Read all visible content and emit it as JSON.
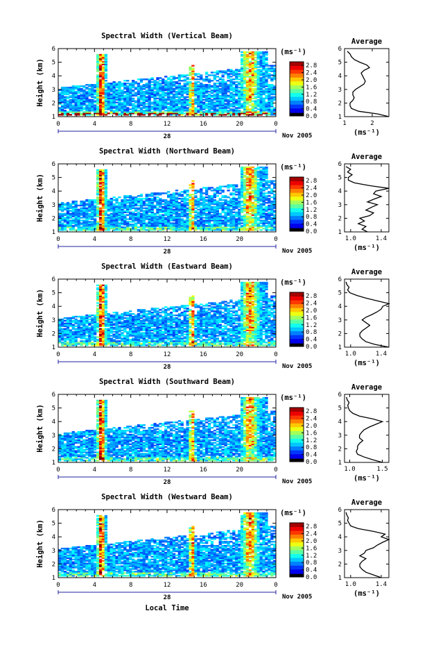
{
  "figure": {
    "xlabel": "Local Time",
    "x_ticks": [
      "0",
      "4",
      "8",
      "12",
      "16",
      "20",
      "0"
    ],
    "day_label": "28",
    "month_label": "Nov 2005",
    "colorbar_unit": "(ms⁻¹)",
    "avg_unit": "(ms⁻¹)"
  },
  "chart_data": [
    {
      "type": "heatmap",
      "title": "Spectral Width (Vertical Beam)",
      "ylabel": "Height (km)",
      "xlabel": "",
      "xlim": [
        0,
        24
      ],
      "ylim": [
        1,
        6
      ],
      "y_ticks": [
        "1",
        "2",
        "3",
        "4",
        "5",
        "6"
      ],
      "colorbar_ticks": [
        "0.0",
        "0.4",
        "0.8",
        "1.2",
        "1.6",
        "2.0",
        "2.4",
        "2.8"
      ],
      "colorbar_range": [
        0,
        3
      ],
      "avg_profile": {
        "title": "Average",
        "x_ticks": [
          "1",
          "2"
        ],
        "xlim": [
          1,
          2.6
        ],
        "height": [
          1.0,
          1.2,
          1.4,
          1.6,
          1.8,
          2.0,
          2.2,
          2.4,
          2.6,
          2.8,
          3.0,
          3.2,
          3.4,
          3.6,
          3.8,
          4.0,
          4.2,
          4.4,
          4.6,
          4.8,
          5.0,
          5.2,
          5.4,
          5.6,
          5.8
        ],
        "value": [
          2.6,
          2.2,
          1.5,
          1.25,
          1.2,
          1.2,
          1.3,
          1.35,
          1.3,
          1.3,
          1.4,
          1.55,
          1.7,
          1.75,
          1.7,
          1.65,
          1.6,
          1.7,
          1.9,
          1.8,
          1.55,
          1.35,
          1.25,
          1.2,
          1.1
        ]
      }
    },
    {
      "type": "heatmap",
      "title": "Spectral Width (Northward Beam)",
      "ylabel": "Height (km)",
      "xlabel": "",
      "xlim": [
        0,
        24
      ],
      "ylim": [
        1,
        6
      ],
      "y_ticks": [
        "1",
        "2",
        "3",
        "4",
        "5",
        "6"
      ],
      "colorbar_ticks": [
        "0.0",
        "0.4",
        "0.8",
        "1.2",
        "1.6",
        "2.0",
        "2.4",
        "2.8"
      ],
      "colorbar_range": [
        0,
        3
      ],
      "avg_profile": {
        "title": "Average",
        "x_ticks": [
          "1.0",
          "1.4"
        ],
        "xlim": [
          0.92,
          1.5
        ],
        "height": [
          1.0,
          1.2,
          1.4,
          1.6,
          1.8,
          2.0,
          2.2,
          2.4,
          2.6,
          2.8,
          3.0,
          3.2,
          3.4,
          3.6,
          3.8,
          4.0,
          4.2,
          4.4,
          4.6,
          4.8,
          5.0,
          5.2,
          5.4,
          5.6,
          5.8
        ],
        "value": [
          1.22,
          1.15,
          1.2,
          1.1,
          1.18,
          1.12,
          1.25,
          1.3,
          1.2,
          1.27,
          1.35,
          1.22,
          1.3,
          1.4,
          1.3,
          1.33,
          1.5,
          1.25,
          1.05,
          0.97,
          0.97,
          1.02,
          0.96,
          1.0,
          0.94
        ]
      }
    },
    {
      "type": "heatmap",
      "title": "Spectral Width (Eastward Beam)",
      "ylabel": "Height (km)",
      "xlabel": "",
      "xlim": [
        0,
        24
      ],
      "ylim": [
        1,
        6
      ],
      "y_ticks": [
        "1",
        "2",
        "3",
        "4",
        "5",
        "6"
      ],
      "colorbar_ticks": [
        "0.0",
        "0.4",
        "0.8",
        "1.2",
        "1.6",
        "2.0",
        "2.4",
        "2.8"
      ],
      "colorbar_range": [
        0,
        3
      ],
      "avg_profile": {
        "title": "Average",
        "x_ticks": [
          "1.0",
          "1.4"
        ],
        "xlim": [
          0.92,
          1.5
        ],
        "height": [
          1.0,
          1.2,
          1.4,
          1.6,
          1.8,
          2.0,
          2.2,
          2.4,
          2.6,
          2.8,
          3.0,
          3.2,
          3.4,
          3.6,
          3.8,
          4.0,
          4.2,
          4.4,
          4.6,
          4.8,
          5.0,
          5.2,
          5.4,
          5.6,
          5.8
        ],
        "value": [
          1.5,
          1.32,
          1.2,
          1.15,
          1.12,
          1.12,
          1.15,
          1.2,
          1.25,
          1.2,
          1.15,
          1.2,
          1.28,
          1.35,
          1.4,
          1.42,
          1.5,
          1.35,
          1.2,
          1.08,
          0.99,
          0.96,
          0.98,
          0.95,
          0.94
        ]
      }
    },
    {
      "type": "heatmap",
      "title": "Spectral Width (Southward Beam)",
      "ylabel": "Height (km)",
      "xlabel": "",
      "xlim": [
        0,
        24
      ],
      "ylim": [
        1,
        6
      ],
      "y_ticks": [
        "1",
        "2",
        "3",
        "4",
        "5",
        "6"
      ],
      "colorbar_ticks": [
        "0.0",
        "0.4",
        "0.8",
        "1.2",
        "1.6",
        "2.0",
        "2.4",
        "2.8"
      ],
      "colorbar_range": [
        0,
        3
      ],
      "avg_profile": {
        "title": "Average",
        "x_ticks": [
          "1.0",
          "1.5"
        ],
        "xlim": [
          0.92,
          1.6
        ],
        "height": [
          1.0,
          1.2,
          1.4,
          1.6,
          1.8,
          2.0,
          2.2,
          2.4,
          2.6,
          2.8,
          3.0,
          3.2,
          3.4,
          3.6,
          3.8,
          4.0,
          4.2,
          4.4,
          4.6,
          4.8,
          5.0,
          5.2,
          5.4,
          5.6,
          5.8
        ],
        "value": [
          1.5,
          1.35,
          1.22,
          1.12,
          1.1,
          1.12,
          1.12,
          1.15,
          1.2,
          1.15,
          1.15,
          1.18,
          1.22,
          1.3,
          1.4,
          1.5,
          1.35,
          1.15,
          1.05,
          1.0,
          0.98,
          0.97,
          0.99,
          0.96,
          0.95
        ]
      }
    },
    {
      "type": "heatmap",
      "title": "Spectral Width (Westward Beam)",
      "ylabel": "Height (km)",
      "xlabel": "",
      "xlim": [
        0,
        24
      ],
      "ylim": [
        1,
        6
      ],
      "y_ticks": [
        "1",
        "2",
        "3",
        "4",
        "5",
        "6"
      ],
      "colorbar_ticks": [
        "0.0",
        "0.4",
        "0.8",
        "1.2",
        "1.6",
        "2.0",
        "2.4",
        "2.8"
      ],
      "colorbar_range": [
        0,
        3
      ],
      "avg_profile": {
        "title": "Average",
        "x_ticks": [
          "1.0",
          "1.4"
        ],
        "xlim": [
          0.92,
          1.5
        ],
        "height": [
          1.0,
          1.2,
          1.4,
          1.6,
          1.8,
          2.0,
          2.2,
          2.4,
          2.6,
          2.8,
          3.0,
          3.2,
          3.4,
          3.6,
          3.8,
          4.0,
          4.2,
          4.4,
          4.6,
          4.8,
          5.0,
          5.2,
          5.4,
          5.6,
          5.8
        ],
        "value": [
          1.4,
          1.3,
          1.2,
          1.15,
          1.12,
          1.12,
          1.15,
          1.2,
          1.12,
          1.18,
          1.2,
          1.3,
          1.35,
          1.42,
          1.5,
          1.4,
          1.45,
          1.3,
          1.1,
          1.0,
          0.98,
          0.96,
          0.97,
          0.95,
          0.94
        ]
      }
    }
  ]
}
